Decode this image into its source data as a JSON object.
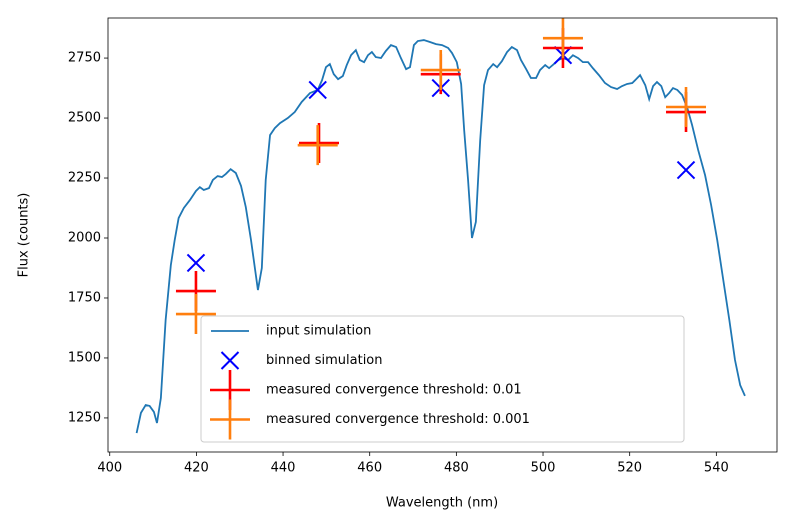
{
  "chart_data": {
    "type": "line",
    "xlabel": "Wavelength (nm)",
    "ylabel": "Flux (counts)",
    "xlim": [
      399.6,
      554.0
    ],
    "ylim": [
      1108,
      2917
    ],
    "xticks": [
      400,
      420,
      440,
      460,
      480,
      500,
      520,
      540
    ],
    "yticks": [
      1250,
      1500,
      1750,
      2000,
      2250,
      2500,
      2750
    ],
    "legend": "lower center",
    "series": [
      {
        "name": "input simulation",
        "type": "line",
        "color": "#1f77b4",
        "x": [
          406.2,
          407.2,
          408.3,
          409.2,
          410.2,
          410.9,
          411.8,
          412.9,
          414.1,
          415.0,
          415.9,
          417.1,
          418.5,
          419.9,
          420.8,
          421.7,
          422.9,
          423.8,
          424.9,
          425.9,
          426.8,
          427.9,
          429.1,
          430.3,
          431.4,
          432.6,
          434.2,
          435.1,
          436.0,
          437.0,
          438.1,
          439.3,
          441.1,
          442.7,
          444.3,
          446.2,
          448.0,
          449.0,
          449.9,
          450.8,
          451.7,
          452.7,
          453.8,
          454.7,
          455.7,
          456.8,
          457.7,
          458.7,
          459.6,
          460.5,
          461.4,
          462.6,
          463.7,
          464.9,
          466.1,
          467.2,
          468.4,
          469.3,
          470.2,
          471.1,
          472.5,
          473.9,
          475.3,
          476.7,
          478.1,
          479.0,
          480.1,
          481.1,
          481.8,
          482.7,
          483.6,
          484.5,
          485.5,
          486.4,
          487.3,
          488.5,
          489.4,
          490.5,
          491.7,
          492.8,
          494.0,
          494.9,
          496.1,
          497.2,
          498.4,
          499.3,
          500.5,
          501.4,
          502.5,
          503.5,
          504.6,
          505.8,
          506.9,
          508.1,
          509.2,
          510.4,
          511.5,
          512.9,
          514.3,
          515.7,
          517.1,
          518.2,
          519.4,
          520.6,
          521.5,
          522.4,
          523.6,
          524.5,
          525.4,
          526.3,
          527.3,
          528.2,
          529.1,
          530.0,
          531.0,
          532.1,
          533.3,
          534.4,
          535.8,
          537.4,
          538.8,
          540.2,
          541.6,
          543.0,
          544.3,
          545.5,
          546.6
        ],
        "values": [
          1187,
          1271,
          1304,
          1300,
          1275,
          1229,
          1333,
          1658,
          1887,
          1992,
          2083,
          2125,
          2158,
          2196,
          2212,
          2200,
          2208,
          2242,
          2258,
          2254,
          2267,
          2287,
          2271,
          2217,
          2129,
          1992,
          1783,
          1875,
          2242,
          2429,
          2458,
          2479,
          2500,
          2525,
          2567,
          2604,
          2617,
          2658,
          2712,
          2725,
          2683,
          2662,
          2675,
          2721,
          2762,
          2783,
          2742,
          2733,
          2762,
          2775,
          2754,
          2750,
          2779,
          2804,
          2796,
          2750,
          2704,
          2712,
          2804,
          2821,
          2825,
          2817,
          2808,
          2804,
          2792,
          2771,
          2733,
          2642,
          2450,
          2242,
          2000,
          2067,
          2408,
          2637,
          2700,
          2725,
          2712,
          2737,
          2775,
          2796,
          2783,
          2742,
          2704,
          2667,
          2667,
          2700,
          2721,
          2708,
          2725,
          2742,
          2750,
          2742,
          2762,
          2750,
          2733,
          2733,
          2708,
          2679,
          2646,
          2629,
          2621,
          2633,
          2642,
          2646,
          2662,
          2679,
          2637,
          2579,
          2633,
          2650,
          2633,
          2587,
          2604,
          2625,
          2617,
          2596,
          2542,
          2471,
          2367,
          2262,
          2137,
          1992,
          1825,
          1658,
          1492,
          1387,
          1342
        ]
      },
      {
        "name": "binned simulation",
        "type": "scatter",
        "marker": "x",
        "color": "#0000ff",
        "x": [
          419.9,
          448.0,
          476.4,
          504.6,
          533.0
        ],
        "values": [
          1896,
          2617,
          2625,
          2762,
          2283
        ]
      },
      {
        "name": "measured convergence threshold: 0.01",
        "type": "scatter",
        "marker": "+",
        "color": "#ff0000",
        "x": [
          419.9,
          448.3,
          476.4,
          504.6,
          533.0
        ],
        "values": [
          1779,
          2396,
          2683,
          2792,
          2525
        ]
      },
      {
        "name": "measured convergence threshold: 0.001",
        "type": "scatter",
        "marker": "+",
        "color": "#ff7f0e",
        "x": [
          419.9,
          448.0,
          476.4,
          504.6,
          533.0
        ],
        "values": [
          1683,
          2387,
          2700,
          2833,
          2546
        ]
      }
    ]
  }
}
